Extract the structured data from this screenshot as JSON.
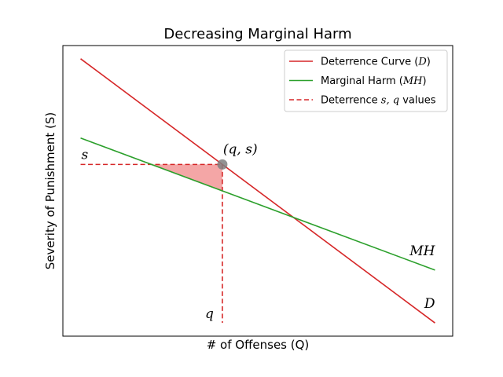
{
  "chart_data": {
    "type": "line",
    "title": "Decreasing Marginal Harm",
    "xlabel": "# of Offenses (Q)",
    "ylabel": "Severity of Punishment (S)",
    "xlim": [
      -0.05,
      1.05
    ],
    "ylim": [
      -0.05,
      1.05
    ],
    "grid": false,
    "ticks_visible": false,
    "legend_position": "top-right",
    "series": [
      {
        "name": "Deterrence Curve ($D$)",
        "label": "D",
        "color": "#d62728",
        "style": "solid",
        "x": [
          0,
          1
        ],
        "y": [
          1.0,
          0.0
        ]
      },
      {
        "name": "Marginal Harm ($MH$)",
        "label": "MH",
        "color": "#2ca02c",
        "style": "solid",
        "x": [
          0,
          1
        ],
        "y": [
          0.7,
          0.2
        ]
      }
    ],
    "legend": [
      {
        "pre": "Deterrence Curve (",
        "math": "D",
        "post": ")",
        "color": "#d62728",
        "style": "solid"
      },
      {
        "pre": "Marginal Harm (",
        "math": "MH",
        "post": ")",
        "color": "#2ca02c",
        "style": "solid"
      },
      {
        "pre": "Deterrence ",
        "math": "s, q",
        "post": " values",
        "color": "#d62728",
        "style": "dashed"
      }
    ],
    "point": {
      "x": 0.4,
      "y": 0.6,
      "label": "(q, s)",
      "color": "#808080"
    },
    "guides": {
      "color": "#d62728",
      "s_label": "s",
      "q_label": "q",
      "h_from_x": 0.0,
      "v_to_y": 0.0
    },
    "shaded_region": {
      "color": "#f4a6a6",
      "vertices": [
        [
          0.2,
          0.6
        ],
        [
          0.4,
          0.6
        ],
        [
          0.4,
          0.5
        ]
      ]
    }
  }
}
